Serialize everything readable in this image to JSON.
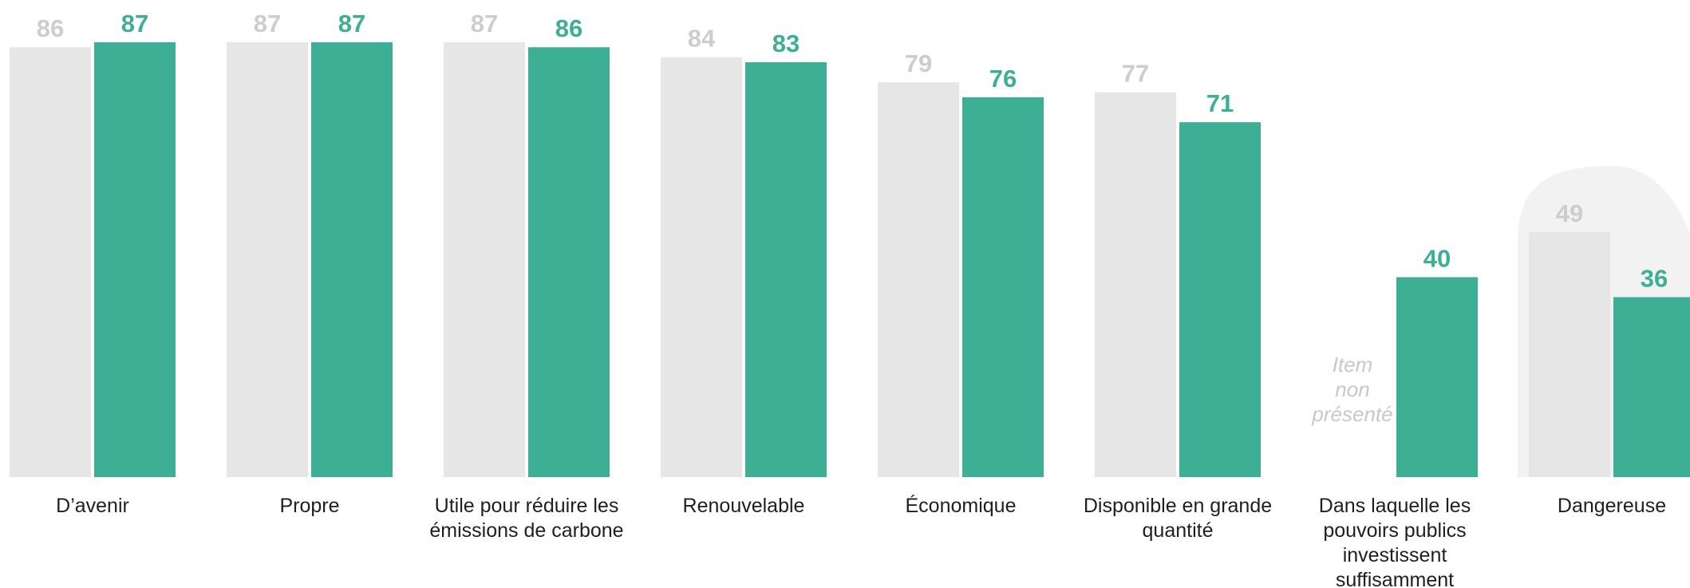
{
  "chart_data": {
    "type": "bar",
    "categories": [
      "D’avenir",
      "Propre",
      "Utile pour réduire les émissions de carbone",
      "Renouvelable",
      "Économique",
      "Disponible en grande quantité",
      "Dans laquelle les pouvoirs publics investissent suffisamment",
      "Dangereuse"
    ],
    "category_lines": [
      [
        "D’avenir"
      ],
      [
        "Propre"
      ],
      [
        "Utile pour réduire les",
        "émissions de carbone"
      ],
      [
        "Renouvelable"
      ],
      [
        "Économique"
      ],
      [
        "Disponible en grande",
        "quantité"
      ],
      [
        "Dans laquelle les",
        "pouvoirs publics",
        "investissent",
        "suffisamment"
      ],
      [
        "Dangereuse"
      ]
    ],
    "series": [
      {
        "values": [
          86,
          87,
          87,
          84,
          79,
          77,
          null,
          49
        ],
        "color": "#e6e6e6",
        "label_color": "#cdcdcd"
      },
      {
        "values": [
          87,
          87,
          86,
          83,
          76,
          71,
          40,
          36
        ],
        "color": "#3daf94",
        "label_color": "#3daf94"
      }
    ],
    "missing_note": [
      "Item",
      "non",
      "présenté"
    ],
    "highlight_category": "Dangereuse",
    "highlight_color": "#f2f2f2",
    "ylim": [
      0,
      100
    ],
    "grid": false,
    "legend": "none"
  }
}
